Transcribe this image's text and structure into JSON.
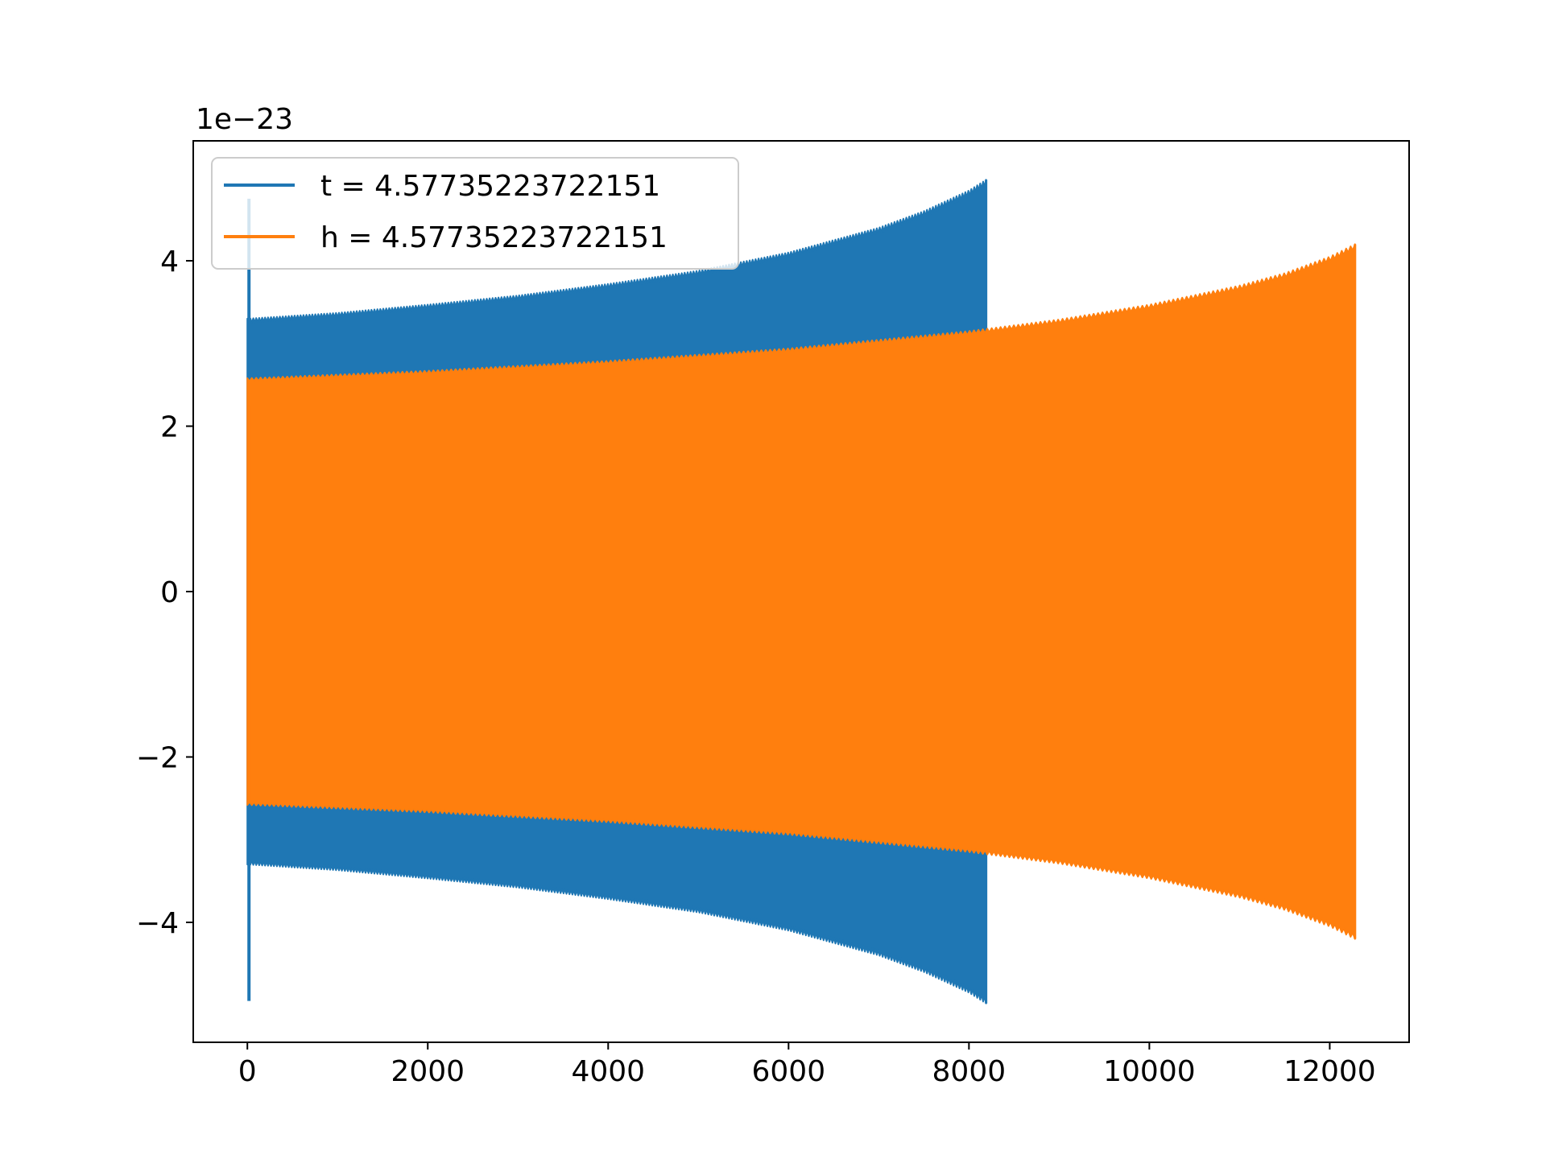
{
  "chart_data": {
    "type": "line",
    "title": "",
    "xlabel": "",
    "ylabel": "",
    "offset_label": "1e−23",
    "xlim": [
      -600,
      12880
    ],
    "ylim": [
      -5.45,
      5.45
    ],
    "xticks": [
      0,
      2000,
      4000,
      6000,
      8000,
      10000,
      12000
    ],
    "xtick_labels": [
      "0",
      "2000",
      "4000",
      "6000",
      "8000",
      "10000",
      "12000"
    ],
    "yticks": [
      4,
      2,
      0,
      -2,
      -4
    ],
    "ytick_labels": [
      "4",
      "2",
      "0",
      "−2",
      "−4"
    ],
    "grid": false,
    "legend_position": "top-left",
    "series": [
      {
        "name": "t = 4.57735223722151",
        "color": "#1f77b4",
        "style": "dense-oscillation",
        "envelope": {
          "x": [
            0,
            1000,
            2000,
            3000,
            4000,
            5000,
            6000,
            7000,
            7500,
            8000,
            8190
          ],
          "upper": [
            3.3,
            3.37,
            3.47,
            3.58,
            3.72,
            3.88,
            4.1,
            4.4,
            4.6,
            4.85,
            4.98
          ],
          "lower": [
            -3.3,
            -3.37,
            -3.47,
            -3.58,
            -3.72,
            -3.88,
            -4.1,
            -4.4,
            -4.6,
            -4.85,
            -4.98
          ]
        },
        "spike": {
          "x": 0,
          "max": 4.75,
          "min": -4.95
        }
      },
      {
        "name": "h = 4.57735223722151",
        "color": "#ff7f0e",
        "style": "dense-oscillation",
        "envelope": {
          "x": [
            0,
            2000,
            4000,
            6000,
            8000,
            9000,
            10000,
            11000,
            11500,
            12000,
            12280
          ],
          "upper": [
            2.58,
            2.67,
            2.79,
            2.94,
            3.15,
            3.29,
            3.47,
            3.7,
            3.85,
            4.05,
            4.2
          ],
          "lower": [
            -2.58,
            -2.67,
            -2.79,
            -2.94,
            -3.15,
            -3.29,
            -3.47,
            -3.7,
            -3.85,
            -4.05,
            -4.2
          ]
        },
        "spike": {
          "x": 0,
          "max": 2.25,
          "min": -2.55
        }
      }
    ]
  }
}
